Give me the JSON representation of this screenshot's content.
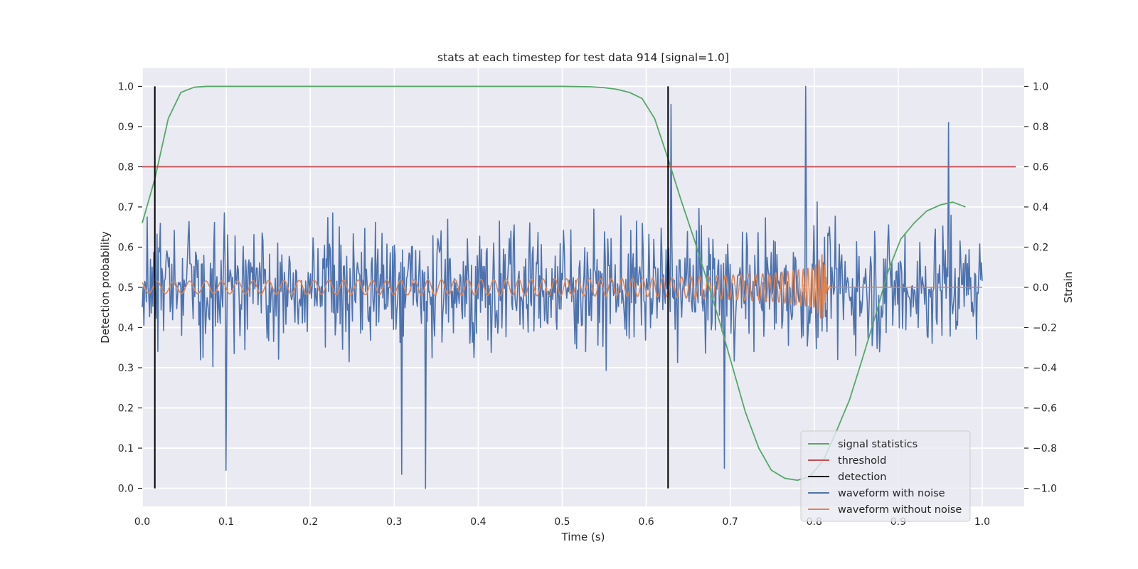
{
  "chart_data": {
    "type": "line",
    "title": "stats at each timestep for test data 914 [signal=1.0]",
    "xlabel": "Time (s)",
    "ylabel_left": "Detection probability",
    "ylabel_right": "Strain",
    "xlim": [
      0.0,
      1.05
    ],
    "ylim_left": [
      -0.045,
      1.045
    ],
    "ylim_right": [
      -1.09,
      1.09
    ],
    "x_ticks": [
      0.0,
      0.1,
      0.2,
      0.3,
      0.4,
      0.5,
      0.6,
      0.7,
      0.8,
      0.9,
      1.0
    ],
    "x_tick_labels": [
      "0.0",
      "0.1",
      "0.2",
      "0.3",
      "0.4",
      "0.5",
      "0.6",
      "0.7",
      "0.8",
      "0.9",
      "1.0"
    ],
    "y_left_ticks": [
      0.0,
      0.1,
      0.2,
      0.3,
      0.4,
      0.5,
      0.6,
      0.7,
      0.8,
      0.9,
      1.0
    ],
    "y_left_tick_labels": [
      "0.0",
      "0.1",
      "0.2",
      "0.3",
      "0.4",
      "0.5",
      "0.6",
      "0.7",
      "0.8",
      "0.9",
      "1.0"
    ],
    "y_right_ticks": [
      -1.0,
      -0.8,
      -0.6,
      -0.4,
      -0.2,
      0.0,
      0.2,
      0.4,
      0.6,
      0.8,
      1.0
    ],
    "y_right_tick_labels": [
      "−1.0",
      "−0.8",
      "−0.6",
      "−0.4",
      "−0.2",
      "0.0",
      "0.2",
      "0.4",
      "0.6",
      "0.8",
      "1.0"
    ],
    "grid": true,
    "legend_position": "bottom-right",
    "background_color": "#eaeaf2",
    "grid_color": "#ffffff",
    "series": [
      {
        "name": "signal statistics",
        "color": "#55a868",
        "axis": "left",
        "x": [
          0.0,
          0.015,
          0.031,
          0.046,
          0.062,
          0.077,
          0.093,
          0.2,
          0.3,
          0.4,
          0.5,
          0.533,
          0.549,
          0.564,
          0.58,
          0.595,
          0.61,
          0.626,
          0.641,
          0.657,
          0.672,
          0.688,
          0.703,
          0.718,
          0.734,
          0.749,
          0.765,
          0.78,
          0.795,
          0.811,
          0.826,
          0.842,
          0.857,
          0.873,
          0.888,
          0.903,
          0.919,
          0.934,
          0.95,
          0.965,
          0.98
        ],
        "y": [
          0.66,
          0.77,
          0.92,
          0.985,
          0.998,
          1.0,
          1.0,
          1.0,
          1.0,
          1.0,
          1.0,
          0.999,
          0.997,
          0.993,
          0.985,
          0.97,
          0.92,
          0.82,
          0.72,
          0.62,
          0.52,
          0.41,
          0.3,
          0.19,
          0.1,
          0.045,
          0.025,
          0.02,
          0.03,
          0.07,
          0.14,
          0.22,
          0.32,
          0.43,
          0.54,
          0.62,
          0.66,
          0.69,
          0.705,
          0.712,
          0.7
        ]
      },
      {
        "name": "threshold",
        "color": "#c44e52",
        "axis": "left",
        "x": [
          0.0,
          1.04
        ],
        "y": [
          0.8,
          0.8
        ]
      },
      {
        "name": "detection",
        "color": "#000000",
        "axis": "left",
        "segments": [
          {
            "x": 0.015,
            "y": [
              0.0,
              1.0
            ]
          },
          {
            "x": 0.626,
            "y": [
              0.0,
              1.0
            ]
          }
        ]
      },
      {
        "name": "waveform with noise",
        "color": "#4c72b0",
        "axis": "right",
        "x_range": [
          0.0,
          1.0
        ],
        "num_points": 1024,
        "y_range": [
          -1.0,
          1.0
        ],
        "peaks": [
          {
            "x": 0.337,
            "y": -1.0
          },
          {
            "x": 0.79,
            "y": 1.0
          },
          {
            "x": 0.63,
            "y": 0.91
          },
          {
            "x": 0.96,
            "y": 0.82
          },
          {
            "x": 0.309,
            "y": -0.93
          },
          {
            "x": 0.1,
            "y": -0.91
          },
          {
            "x": 0.693,
            "y": -0.9
          }
        ]
      },
      {
        "name": "waveform without noise",
        "color": "#dd8452",
        "axis": "right",
        "x_range": [
          0.0,
          1.0
        ],
        "envelope": [
          {
            "x": 0.0,
            "amp": 0.03
          },
          {
            "x": 0.6,
            "amp": 0.045
          },
          {
            "x": 0.75,
            "amp": 0.07
          },
          {
            "x": 0.8,
            "amp": 0.1
          },
          {
            "x": 0.81,
            "amp": 0.17
          },
          {
            "x": 0.815,
            "amp": 0.02
          },
          {
            "x": 0.83,
            "amp": 0.0
          },
          {
            "x": 1.0,
            "amp": 0.0
          }
        ]
      }
    ]
  }
}
